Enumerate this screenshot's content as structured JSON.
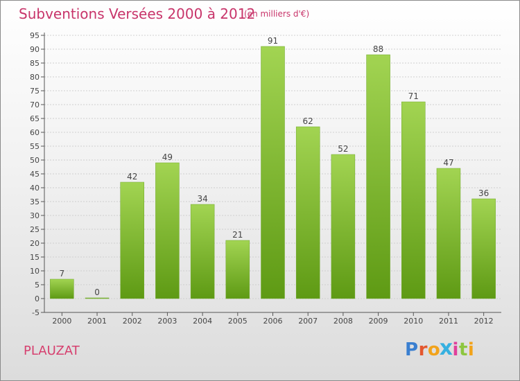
{
  "header": {
    "title": "Subventions Versées 2000 à 2012",
    "unit": "(en milliers d'€)"
  },
  "footer": {
    "commune": "PLAUZAT",
    "brand_letters": [
      {
        "ch": "P",
        "color": "#3a7fd0"
      },
      {
        "ch": "r",
        "color": "#e4572e"
      },
      {
        "ch": "o",
        "color": "#f2a31b"
      },
      {
        "ch": "x",
        "color": "#36b0e0"
      },
      {
        "ch": "i",
        "color": "#e0409b"
      },
      {
        "ch": "t",
        "color": "#8dc63f"
      },
      {
        "ch": "i",
        "color": "#f2a31b"
      }
    ]
  },
  "chart_data": {
    "type": "bar",
    "title": "Subventions Versées 2000 à 2012",
    "subtitle": "(en milliers d'€)",
    "categories": [
      "2000",
      "2001",
      "2002",
      "2003",
      "2004",
      "2005",
      "2006",
      "2007",
      "2008",
      "2009",
      "2010",
      "2011",
      "2012"
    ],
    "values": [
      7,
      0,
      42,
      49,
      34,
      21,
      91,
      62,
      52,
      88,
      71,
      47,
      36
    ],
    "ylim": [
      -5,
      95
    ],
    "yticks": [
      -5,
      0,
      5,
      10,
      15,
      20,
      25,
      30,
      35,
      40,
      45,
      50,
      55,
      60,
      65,
      70,
      75,
      80,
      85,
      90,
      95
    ],
    "grid": true,
    "bar_color_top": "#a2d452",
    "bar_color_bottom": "#5e9a14"
  }
}
